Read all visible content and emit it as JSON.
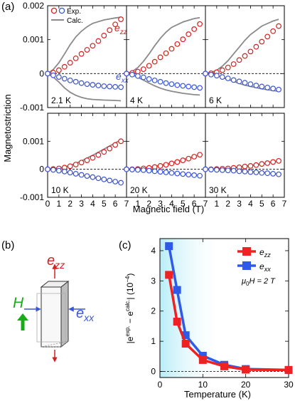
{
  "figure": {
    "panel_labels": {
      "a": "(a)",
      "b": "(b)",
      "c": "(c)"
    },
    "panel_a": {
      "ylabel": "Magnetostriction",
      "xlabel": "Magnetic field (T)",
      "y_ticks": [
        "0.002",
        "0.001",
        "0",
        "-0.001"
      ],
      "x_ticks": [
        "0",
        "1",
        "2",
        "3",
        "4",
        "5",
        "6",
        "7"
      ],
      "legend": {
        "exp": "Exp.",
        "calc": "Calc."
      },
      "curve_labels": {
        "ezz": "e",
        "ezz_sub": "zz",
        "exx": "e",
        "exx_sub": "xx"
      },
      "temperatures": [
        "2.1 K",
        "4 K",
        "6 K",
        "10 K",
        "20 K",
        "30 K"
      ]
    },
    "panel_b": {
      "H": "H",
      "ezz": "e",
      "ezz_sub": "zz",
      "exx": "e",
      "exx_sub": "xx"
    },
    "panel_c": {
      "ylabel_main": "|e",
      "ylabel_sup1": "exp.",
      "ylabel_mid": " − e",
      "ylabel_sup2": "calc.",
      "ylabel_end": "| (10",
      "ylabel_exp": "−4",
      "ylabel_close": ")",
      "xlabel": "Temperature (K)",
      "field_note_mu": "μ",
      "field_note_sub": "0",
      "field_note_rest": "H = 2 T",
      "legend_ezz": "e",
      "legend_ezz_sub": "zz",
      "legend_exx": "e",
      "legend_exx_sub": "xx"
    }
  },
  "colors": {
    "exp_red": "#d62020",
    "exp_blue": "#3a55d6",
    "calc_gray": "#8a8a8a",
    "c_red": "#ee2222",
    "c_blue": "#2f59e8",
    "green": "#1aaa1a",
    "shade": "#bdeef7"
  },
  "chart_data": [
    {
      "type": "scatter",
      "panel": "a-2.1 K",
      "xlim": [
        0,
        7
      ],
      "ylim": [
        -0.001,
        0.002
      ],
      "series": [
        {
          "name": "Exp.",
          "component": "ezz",
          "x": [
            0,
            0.5,
            1,
            1.5,
            2,
            2.5,
            3,
            3.5,
            4,
            4.5,
            5,
            5.5,
            6,
            6.5
          ],
          "y": [
            0,
            3e-05,
            0.0001,
            0.0002,
            0.00032,
            0.00045,
            0.00058,
            0.0007,
            0.00082,
            0.00096,
            0.00112,
            0.00128,
            0.00145,
            0.0016
          ]
        },
        {
          "name": "Exp.",
          "component": "exx",
          "x": [
            0,
            0.5,
            1,
            1.5,
            2,
            2.5,
            3,
            3.5,
            4,
            4.5,
            5,
            5.5,
            6,
            6.5
          ],
          "y": [
            0,
            -5e-05,
            -0.0001,
            -0.00015,
            -0.0002,
            -0.00024,
            -0.00028,
            -0.00031,
            -0.00033,
            -0.00035,
            -0.00037,
            -0.00038,
            -0.00039,
            -0.0004
          ]
        },
        {
          "name": "Calc.",
          "component": "ezz",
          "x": [
            0,
            0.5,
            1,
            1.5,
            2,
            2.5,
            3,
            3.5,
            4,
            5,
            6,
            6.5
          ],
          "y": [
            0,
            0.00012,
            0.00032,
            0.00058,
            0.00085,
            0.00108,
            0.00125,
            0.00138,
            0.00148,
            0.00158,
            0.00164,
            0.00166
          ]
        },
        {
          "name": "Calc.",
          "component": "exx",
          "x": [
            0,
            0.5,
            1,
            1.5,
            2,
            2.5,
            3,
            3.5,
            4,
            5,
            6,
            6.5
          ],
          "y": [
            0,
            -0.0001,
            -0.00025,
            -0.00042,
            -0.00055,
            -0.00064,
            -0.0007,
            -0.00074,
            -0.00076,
            -0.00078,
            -0.00079,
            -0.0008
          ]
        }
      ]
    },
    {
      "type": "scatter",
      "panel": "a-4 K",
      "xlim": [
        0,
        7
      ],
      "ylim": [
        -0.001,
        0.002
      ],
      "series": [
        {
          "name": "Exp.",
          "component": "ezz",
          "x": [
            0,
            0.5,
            1,
            1.5,
            2,
            2.5,
            3,
            3.5,
            4,
            4.5,
            5,
            5.5,
            6,
            6.5
          ],
          "y": [
            0,
            2e-05,
            6e-05,
            0.00013,
            0.00023,
            0.00035,
            0.00048,
            0.0006,
            0.00073,
            0.00087,
            0.00101,
            0.00116,
            0.00131,
            0.00146
          ]
        },
        {
          "name": "Exp.",
          "component": "exx",
          "x": [
            0,
            0.5,
            1,
            1.5,
            2,
            2.5,
            3,
            3.5,
            4,
            4.5,
            5,
            5.5,
            6,
            6.5
          ],
          "y": [
            0,
            -3e-05,
            -7e-05,
            -0.00011,
            -0.00016,
            -0.0002,
            -0.00024,
            -0.00028,
            -0.00031,
            -0.00034,
            -0.00036,
            -0.00038,
            -0.0004,
            -0.00042
          ]
        },
        {
          "name": "Calc.",
          "component": "ezz",
          "x": [
            0,
            0.5,
            1,
            1.5,
            2,
            2.5,
            3,
            3.5,
            4,
            5,
            6,
            6.5
          ],
          "y": [
            0,
            6e-05,
            0.00018,
            0.00036,
            0.00058,
            0.00082,
            0.00104,
            0.00122,
            0.00136,
            0.00152,
            0.00162,
            0.00165
          ]
        },
        {
          "name": "Calc.",
          "component": "exx",
          "x": [
            0,
            0.5,
            1,
            1.5,
            2,
            2.5,
            3,
            3.5,
            4,
            5,
            6,
            6.5
          ],
          "y": [
            0,
            -4e-05,
            -0.00011,
            -0.00019,
            -0.00028,
            -0.00036,
            -0.00043,
            -0.00048,
            -0.00052,
            -0.00058,
            -0.00062,
            -0.00063
          ]
        }
      ]
    },
    {
      "type": "scatter",
      "panel": "a-6 K",
      "xlim": [
        0,
        7
      ],
      "ylim": [
        -0.001,
        0.002
      ],
      "series": [
        {
          "name": "Exp.",
          "component": "ezz",
          "x": [
            0,
            0.5,
            1,
            1.5,
            2,
            2.5,
            3,
            3.5,
            4,
            4.5,
            5,
            5.5,
            6,
            6.5
          ],
          "y": [
            0,
            1e-05,
            4e-05,
            0.0001,
            0.00018,
            0.00028,
            0.0004,
            0.00052,
            0.00065,
            0.00079,
            0.00094,
            0.00109,
            0.00125,
            0.0014
          ]
        },
        {
          "name": "Exp.",
          "component": "exx",
          "x": [
            0,
            0.5,
            1,
            1.5,
            2,
            2.5,
            3,
            3.5,
            4,
            4.5,
            5,
            5.5,
            6,
            6.5
          ],
          "y": [
            0,
            -3e-05,
            -6e-05,
            -0.0001,
            -0.00014,
            -0.00019,
            -0.00023,
            -0.00027,
            -0.00031,
            -0.00035,
            -0.00038,
            -0.00041,
            -0.00044,
            -0.00047
          ]
        },
        {
          "name": "Calc.",
          "component": "ezz",
          "x": [
            0,
            0.5,
            1,
            1.5,
            2,
            2.5,
            3,
            3.5,
            4,
            5,
            6,
            6.5
          ],
          "y": [
            0,
            3e-05,
            0.0001,
            0.00022,
            0.00038,
            0.00058,
            0.00078,
            0.00098,
            0.00115,
            0.0014,
            0.00155,
            0.0016
          ]
        },
        {
          "name": "Calc.",
          "component": "exx",
          "x": [
            0,
            0.5,
            1,
            1.5,
            2,
            2.5,
            3,
            3.5,
            4,
            5,
            6,
            6.5
          ],
          "y": [
            0,
            -2e-05,
            -6e-05,
            -0.00011,
            -0.00017,
            -0.00023,
            -0.00029,
            -0.00034,
            -0.00038,
            -0.00045,
            -0.0005,
            -0.00052
          ]
        }
      ]
    },
    {
      "type": "scatter",
      "panel": "a-10 K",
      "xlim": [
        0,
        7
      ],
      "ylim": [
        -0.001,
        0.002
      ],
      "series": [
        {
          "name": "Exp.",
          "component": "ezz",
          "x": [
            0,
            0.5,
            1,
            1.5,
            2,
            2.5,
            3,
            3.5,
            4,
            4.5,
            5,
            5.5,
            6,
            6.5
          ],
          "y": [
            0,
            1e-05,
            3e-05,
            6e-05,
            0.00011,
            0.00017,
            0.00024,
            0.00032,
            0.00041,
            0.00051,
            0.00062,
            0.00074,
            0.00087,
            0.001
          ]
        },
        {
          "name": "Exp.",
          "component": "exx",
          "x": [
            0,
            0.5,
            1,
            1.5,
            2,
            2.5,
            3,
            3.5,
            4,
            4.5,
            5,
            5.5,
            6,
            6.5
          ],
          "y": [
            0,
            -2e-05,
            -5e-05,
            -8e-05,
            -0.00012,
            -0.00016,
            -0.0002,
            -0.00024,
            -0.00028,
            -0.00032,
            -0.00036,
            -0.0004,
            -0.00044,
            -0.00048
          ]
        },
        {
          "name": "Calc.",
          "component": "ezz",
          "x": [
            0,
            0.5,
            1,
            1.5,
            2,
            2.5,
            3,
            3.5,
            4,
            5,
            6,
            6.5
          ],
          "y": [
            0,
            1e-05,
            4e-05,
            8e-05,
            0.00014,
            0.00021,
            0.0003,
            0.0004,
            0.0005,
            0.00072,
            0.00094,
            0.00105
          ]
        },
        {
          "name": "Calc.",
          "component": "exx",
          "x": [
            0,
            0.5,
            1,
            1.5,
            2,
            2.5,
            3,
            3.5,
            4,
            5,
            6,
            6.5
          ],
          "y": [
            0,
            -2e-05,
            -5e-05,
            -9e-05,
            -0.00013,
            -0.00017,
            -0.00021,
            -0.00025,
            -0.00029,
            -0.00037,
            -0.00045,
            -0.00049
          ]
        }
      ]
    },
    {
      "type": "scatter",
      "panel": "a-20 K",
      "xlim": [
        0,
        7
      ],
      "ylim": [
        -0.001,
        0.002
      ],
      "series": [
        {
          "name": "Exp.",
          "component": "ezz",
          "x": [
            0,
            0.5,
            1,
            1.5,
            2,
            2.5,
            3,
            3.5,
            4,
            4.5,
            5,
            5.5,
            6,
            6.5
          ],
          "y": [
            0,
            0.0,
            1e-05,
            3e-05,
            5e-05,
            8e-05,
            0.00012,
            0.00016,
            0.00021,
            0.00026,
            0.00032,
            0.00038,
            0.00045,
            0.00052
          ]
        },
        {
          "name": "Exp.",
          "component": "exx",
          "x": [
            0,
            0.5,
            1,
            1.5,
            2,
            2.5,
            3,
            3.5,
            4,
            4.5,
            5,
            5.5,
            6,
            6.5
          ],
          "y": [
            0,
            -1e-05,
            -2e-05,
            -3e-05,
            -5e-05,
            -7e-05,
            -9e-05,
            -0.00011,
            -0.00013,
            -0.00015,
            -0.00017,
            -0.00019,
            -0.00021,
            -0.00023
          ]
        },
        {
          "name": "Calc.",
          "component": "ezz",
          "x": [
            0,
            1,
            2,
            3,
            4,
            5,
            6,
            6.5
          ],
          "y": [
            0,
            2e-05,
            7e-05,
            0.00014,
            0.00023,
            0.00034,
            0.00046,
            0.00052
          ]
        },
        {
          "name": "Calc.",
          "component": "exx",
          "x": [
            0,
            1,
            2,
            3,
            4,
            5,
            6,
            6.5
          ],
          "y": [
            0,
            -2e-05,
            -5e-05,
            -9e-05,
            -0.00013,
            -0.00017,
            -0.00021,
            -0.00023
          ]
        }
      ]
    },
    {
      "type": "scatter",
      "panel": "a-30 K",
      "xlim": [
        0,
        7
      ],
      "ylim": [
        -0.001,
        0.002
      ],
      "series": [
        {
          "name": "Exp.",
          "component": "ezz",
          "x": [
            0,
            0.5,
            1,
            1.5,
            2,
            2.5,
            3,
            3.5,
            4,
            4.5,
            5,
            5.5,
            6,
            6.5
          ],
          "y": [
            0,
            0.0,
            1e-05,
            2e-05,
            3e-05,
            5e-05,
            7e-05,
            0.0001,
            0.00012,
            0.00015,
            0.00019,
            0.00022,
            0.00026,
            0.0003
          ]
        },
        {
          "name": "Exp.",
          "component": "exx",
          "x": [
            0,
            0.5,
            1,
            1.5,
            2,
            2.5,
            3,
            3.5,
            4,
            4.5,
            5,
            5.5,
            6,
            6.5
          ],
          "y": [
            0,
            -1e-05,
            -2e-05,
            -3e-05,
            -4e-05,
            -5e-05,
            -7e-05,
            -8e-05,
            -0.0001,
            -0.00011,
            -0.00013,
            -0.00014,
            -0.00016,
            -0.00018
          ]
        },
        {
          "name": "Calc.",
          "component": "ezz",
          "x": [
            0,
            1,
            2,
            3,
            4,
            5,
            6,
            6.5
          ],
          "y": [
            0,
            1e-05,
            4e-05,
            8e-05,
            0.00013,
            0.00019,
            0.00026,
            0.0003
          ]
        },
        {
          "name": "Calc.",
          "component": "exx",
          "x": [
            0,
            1,
            2,
            3,
            4,
            5,
            6,
            6.5
          ],
          "y": [
            0,
            -1e-05,
            -3e-05,
            -5e-05,
            -8e-05,
            -0.00011,
            -0.00015,
            -0.00018
          ]
        }
      ]
    },
    {
      "type": "line",
      "panel": "c",
      "xlim": [
        0,
        30
      ],
      "ylim": [
        -0.2,
        4.4
      ],
      "x_ticks": [
        0,
        10,
        20,
        30
      ],
      "y_ticks": [
        0,
        1,
        2,
        3,
        4
      ],
      "series": [
        {
          "name": "ezz",
          "x": [
            2.1,
            4,
            6,
            10,
            15,
            20,
            30
          ],
          "y": [
            3.2,
            1.65,
            0.92,
            0.38,
            0.17,
            0.06,
            0.05
          ]
        },
        {
          "name": "exx",
          "x": [
            2.1,
            4,
            6,
            10,
            15,
            20,
            30
          ],
          "y": [
            4.15,
            2.7,
            1.2,
            0.52,
            0.22,
            0.08,
            0.05
          ]
        }
      ]
    }
  ]
}
